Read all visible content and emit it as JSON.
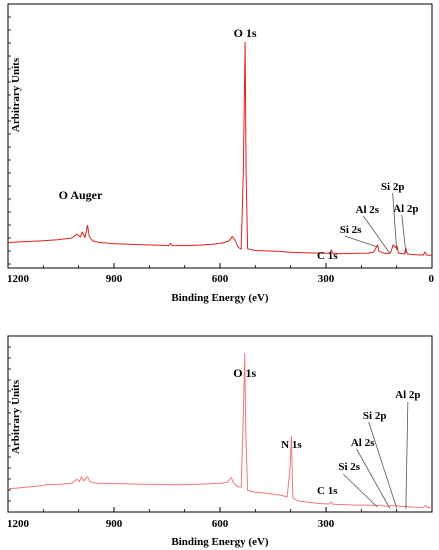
{
  "chart_data": [
    {
      "type": "line",
      "xlabel": "Binding Energy (eV)",
      "ylabel": "Arbitrary Units",
      "xlim": [
        1200,
        0
      ],
      "x_ticks": [
        "1200",
        "900",
        "600",
        "300",
        "0"
      ],
      "x_tick_values": [
        1200,
        900,
        600,
        300,
        0
      ],
      "line_color": "#e0201c",
      "series": [
        {
          "points": [
            [
              1200,
              8.8
            ],
            [
              1150,
              9.2
            ],
            [
              1100,
              9.6
            ],
            [
              1060,
              10.0
            ],
            [
              1020,
              10.8
            ],
            [
              1005,
              12.5
            ],
            [
              995,
              11.2
            ],
            [
              990,
              13.5
            ],
            [
              982,
              11.0
            ],
            [
              975,
              16.5
            ],
            [
              970,
              11.5
            ],
            [
              960,
              9.5
            ],
            [
              940,
              8.8
            ],
            [
              900,
              8.3
            ],
            [
              860,
              8.0
            ],
            [
              820,
              7.8
            ],
            [
              780,
              7.6
            ],
            [
              745,
              7.4
            ],
            [
              740,
              8.4
            ],
            [
              735,
              7.4
            ],
            [
              700,
              7.4
            ],
            [
              660,
              7.6
            ],
            [
              620,
              8.0
            ],
            [
              590,
              8.6
            ],
            [
              575,
              9.5
            ],
            [
              565,
              11.5
            ],
            [
              558,
              10.0
            ],
            [
              548,
              6.5
            ],
            [
              540,
              5.8
            ],
            [
              534,
              40.0
            ],
            [
              529,
              99.0
            ],
            [
              526,
              40.0
            ],
            [
              522,
              6.0
            ],
            [
              500,
              5.2
            ],
            [
              470,
              5.0
            ],
            [
              440,
              4.8
            ],
            [
              400,
              4.4
            ],
            [
              360,
              4.2
            ],
            [
              320,
              4.0
            ],
            [
              290,
              3.9
            ],
            [
              285,
              5.5
            ],
            [
              280,
              3.8
            ],
            [
              250,
              3.8
            ],
            [
              210,
              3.9
            ],
            [
              180,
              4.0
            ],
            [
              165,
              4.5
            ],
            [
              154,
              7.8
            ],
            [
              150,
              4.8
            ],
            [
              140,
              4.2
            ],
            [
              125,
              3.8
            ],
            [
              116,
              4.5
            ],
            [
              110,
              7.8
            ],
            [
              103,
              6.5
            ],
            [
              99,
              7.2
            ],
            [
              95,
              4.0
            ],
            [
              85,
              3.7
            ],
            [
              78,
              3.6
            ],
            [
              74,
              6.2
            ],
            [
              70,
              3.8
            ],
            [
              60,
              3.4
            ],
            [
              40,
              3.2
            ],
            [
              25,
              3.1
            ],
            [
              20,
              4.5
            ],
            [
              16,
              3.2
            ],
            [
              10,
              3.0
            ],
            [
              0,
              3.0
            ]
          ]
        }
      ],
      "annotations": [
        {
          "text": "O 1s",
          "x": 529
        },
        {
          "text": "O Auger",
          "x": 975
        },
        {
          "text": "C 1s",
          "x": 285
        },
        {
          "text": "Si 2s",
          "x": 154
        },
        {
          "text": "Al 2s",
          "x": 118
        },
        {
          "text": "Si 2p",
          "x": 100
        },
        {
          "text": "Al 2p",
          "x": 74
        }
      ]
    },
    {
      "type": "line",
      "xlabel": "Binding Energy (eV)",
      "ylabel": "Arbitrary Units",
      "xlim": [
        1200,
        0
      ],
      "x_ticks": [
        "1200",
        "900",
        "600",
        "300"
      ],
      "x_tick_values": [
        1200,
        900,
        600,
        300
      ],
      "line_color": "#f07a7a",
      "series": [
        {
          "points": [
            [
              1200,
              15.5
            ],
            [
              1150,
              16.5
            ],
            [
              1100,
              17.5
            ],
            [
              1095,
              18.0
            ],
            [
              1060,
              18.3
            ],
            [
              1020,
              19.0
            ],
            [
              1005,
              21.5
            ],
            [
              998,
              20.0
            ],
            [
              992,
              23.0
            ],
            [
              985,
              20.5
            ],
            [
              975,
              23.0
            ],
            [
              968,
              20.0
            ],
            [
              950,
              19.0
            ],
            [
              900,
              18.8
            ],
            [
              850,
              18.5
            ],
            [
              800,
              18.3
            ],
            [
              760,
              18.2
            ],
            [
              720,
              18.0
            ],
            [
              680,
              18.2
            ],
            [
              640,
              18.5
            ],
            [
              600,
              19.0
            ],
            [
              580,
              19.5
            ],
            [
              568,
              22.5
            ],
            [
              562,
              19.5
            ],
            [
              552,
              17.0
            ],
            [
              540,
              16.5
            ],
            [
              534,
              60.0
            ],
            [
              530,
              99.0
            ],
            [
              527,
              50.0
            ],
            [
              522,
              14.5
            ],
            [
              500,
              13.5
            ],
            [
              470,
              12.8
            ],
            [
              440,
              12.0
            ],
            [
              425,
              11.5
            ],
            [
              410,
              10.5
            ],
            [
              402,
              28.0
            ],
            [
              398,
              48.0
            ],
            [
              394,
              10.0
            ],
            [
              380,
              8.0
            ],
            [
              350,
              7.2
            ],
            [
              320,
              6.5
            ],
            [
              290,
              6.2
            ],
            [
              285,
              7.5
            ],
            [
              280,
              6.0
            ],
            [
              250,
              5.8
            ],
            [
              210,
              5.5
            ],
            [
              175,
              5.5
            ],
            [
              155,
              5.3
            ],
            [
              150,
              5.5
            ],
            [
              140,
              5.0
            ],
            [
              120,
              4.8
            ],
            [
              118,
              5.3
            ],
            [
              110,
              5.0
            ],
            [
              100,
              5.2
            ],
            [
              90,
              4.6
            ],
            [
              74,
              4.8
            ],
            [
              60,
              4.3
            ],
            [
              40,
              4.1
            ],
            [
              25,
              4.0
            ],
            [
              18,
              5.3
            ],
            [
              12,
              4.0
            ],
            [
              0,
              4.0
            ]
          ]
        }
      ],
      "annotations": [
        {
          "text": "O 1s",
          "x": 530
        },
        {
          "text": "N 1s",
          "x": 398
        },
        {
          "text": "C 1s",
          "x": 285
        },
        {
          "text": "Si 2s",
          "x": 155
        },
        {
          "text": "Al 2s",
          "x": 120
        },
        {
          "text": "Si 2p",
          "x": 100
        },
        {
          "text": "Al 2p",
          "x": 74
        }
      ]
    }
  ]
}
